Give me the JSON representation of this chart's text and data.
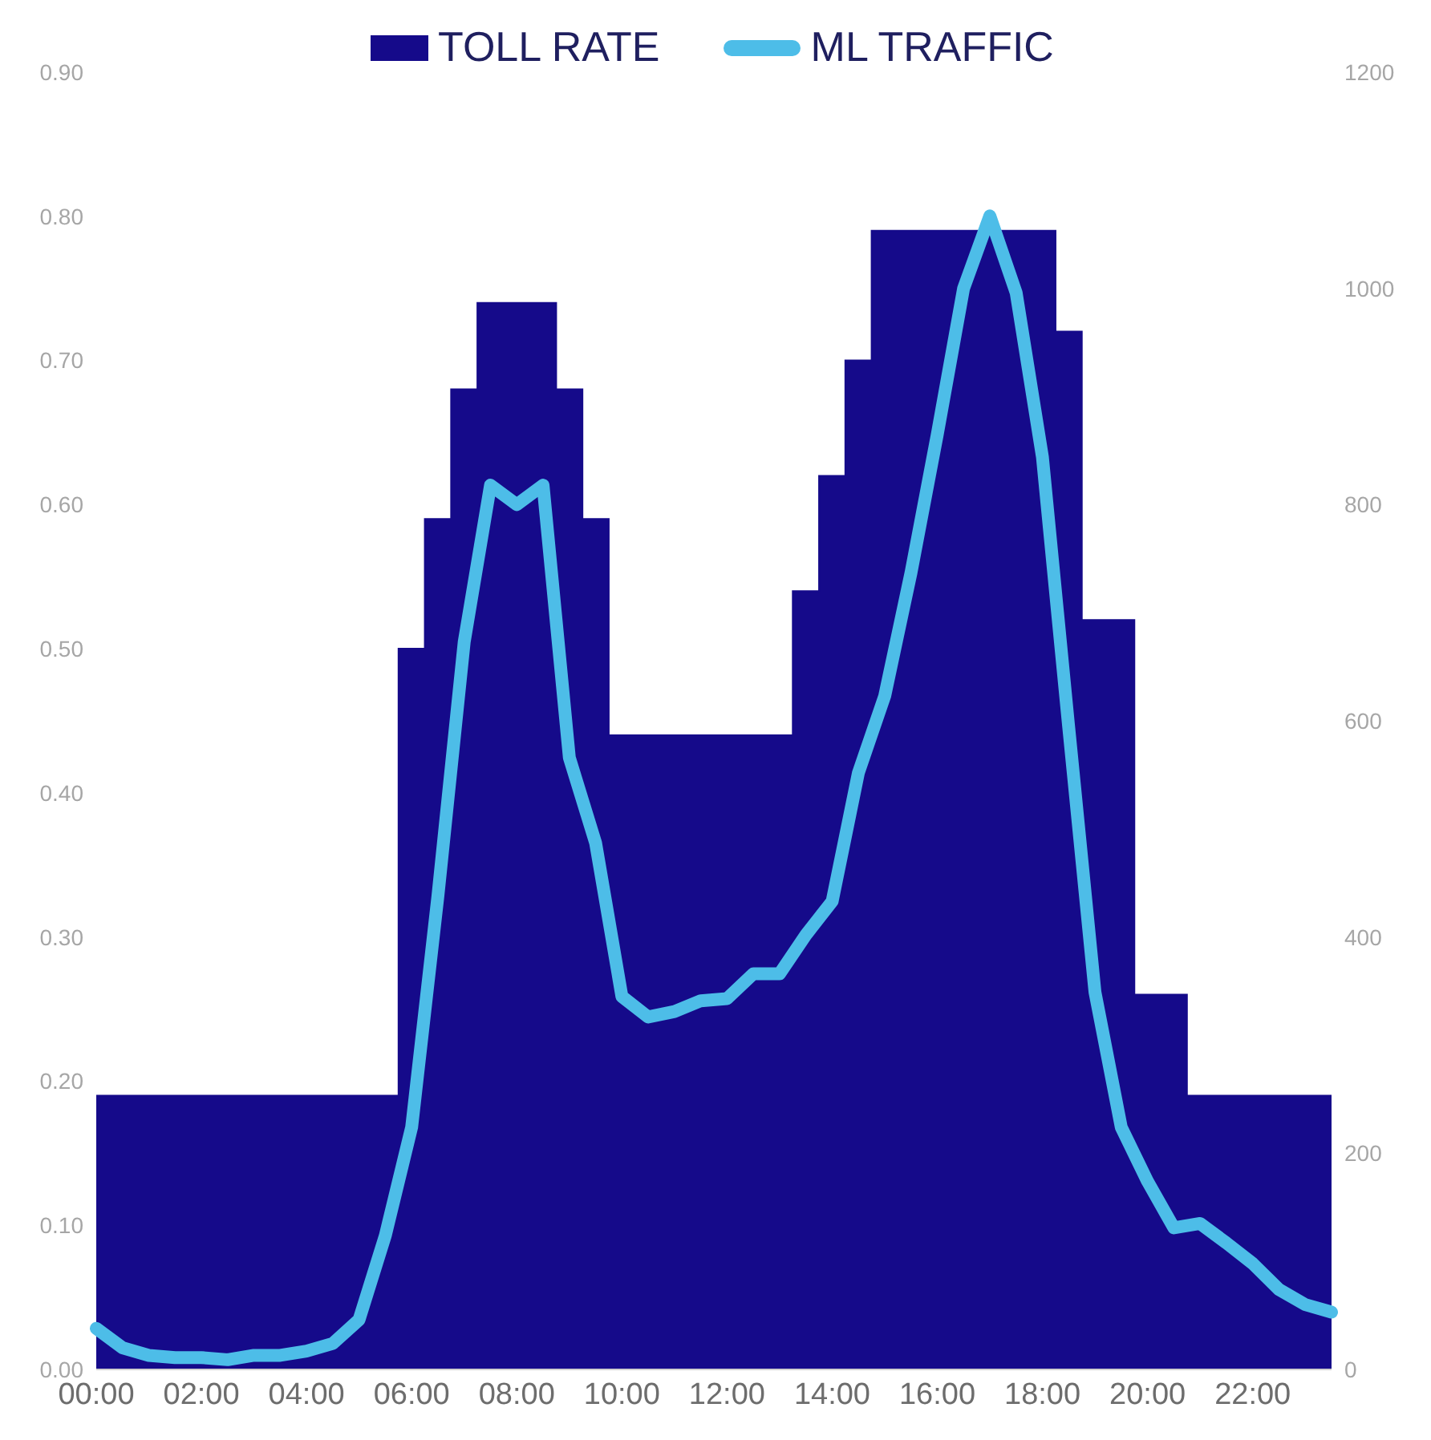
{
  "chart_data": {
    "type": "area",
    "categories": [
      "00:00",
      null,
      null,
      null,
      "02:00",
      null,
      null,
      null,
      "04:00",
      null,
      null,
      null,
      "06:00",
      null,
      null,
      null,
      "08:00",
      null,
      null,
      null,
      "10:00",
      null,
      null,
      null,
      "12:00",
      null,
      null,
      null,
      "14:00",
      null,
      null,
      null,
      "16:00",
      null,
      null,
      null,
      "18:00",
      null,
      null,
      null,
      "20:00",
      null,
      null,
      null,
      "22:00",
      null,
      null,
      null
    ],
    "series": [
      {
        "name": "TOLL RATE",
        "color": "#150a8a",
        "values": [
          0.19,
          0.19,
          0.19,
          0.19,
          0.19,
          0.19,
          0.19,
          0.19,
          0.19,
          0.19,
          0.19,
          0.19,
          0.5,
          0.59,
          0.68,
          0.74,
          0.74,
          0.74,
          0.68,
          0.59,
          0.44,
          0.44,
          0.44,
          0.44,
          0.44,
          0.44,
          0.44,
          0.54,
          0.62,
          0.7,
          0.79,
          0.79,
          0.79,
          0.79,
          0.79,
          0.79,
          0.79,
          0.72,
          0.52,
          0.52,
          0.26,
          0.26,
          0.19,
          0.19,
          0.19,
          0.19,
          0.19,
          0.19
        ]
      },
      {
        "name": "ML TRAFFIC",
        "type": "line",
        "axis": "y2",
        "color": "#4dbde8",
        "values": [
          38,
          20,
          13,
          11,
          11,
          9,
          13,
          13,
          17,
          24,
          46,
          124,
          224,
          438,
          673,
          818,
          800,
          818,
          566,
          487,
          345,
          326,
          331,
          341,
          343,
          366,
          366,
          402,
          433,
          552,
          623,
          737,
          865,
          1000,
          1067,
          996,
          844,
          594,
          349,
          224,
          174,
          131,
          135,
          117,
          98,
          74,
          60,
          53
        ]
      }
    ],
    "ylim": [
      0,
      0.9
    ],
    "yticks": [
      {
        "value": 0,
        "label": "0.00"
      },
      {
        "value": 0.1,
        "label": "0.10"
      },
      {
        "value": 0.2,
        "label": "0.20"
      },
      {
        "value": 0.3,
        "label": "0.30"
      },
      {
        "value": 0.4,
        "label": "0.40"
      },
      {
        "value": 0.5,
        "label": "0.50"
      },
      {
        "value": 0.6,
        "label": "0.60"
      },
      {
        "value": 0.7,
        "label": "0.70"
      },
      {
        "value": 0.8,
        "label": "0.80"
      },
      {
        "value": 0.9,
        "label": "0.90"
      }
    ],
    "y2lim": [
      0,
      1200
    ],
    "y2ticks": [
      0,
      200,
      400,
      600,
      800,
      1000,
      1200
    ],
    "legend": "top",
    "grid": false,
    "marker": "none"
  }
}
